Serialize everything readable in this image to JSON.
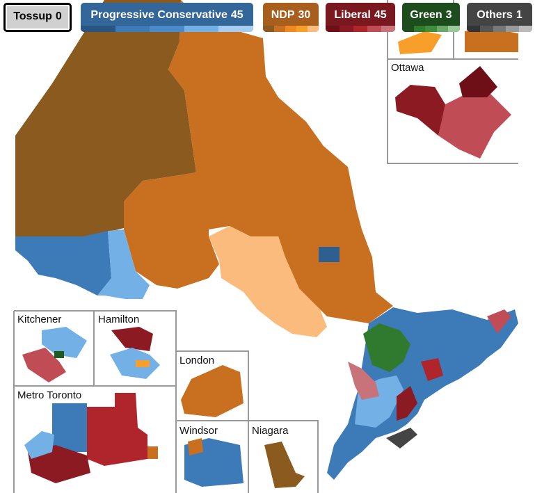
{
  "legend": [
    {
      "name": "Tossup",
      "count": 0
    },
    {
      "name": "Progressive Conservative",
      "count": 45
    },
    {
      "name": "NDP",
      "count": 30
    },
    {
      "name": "Liberal",
      "count": 45
    },
    {
      "name": "Green",
      "count": 3
    },
    {
      "name": "Others",
      "count": 1
    }
  ],
  "insets": [
    "Ottawa",
    "Kitchener",
    "Hamilton",
    "Metro Toronto",
    "London",
    "Windsor",
    "Niagara"
  ]
}
